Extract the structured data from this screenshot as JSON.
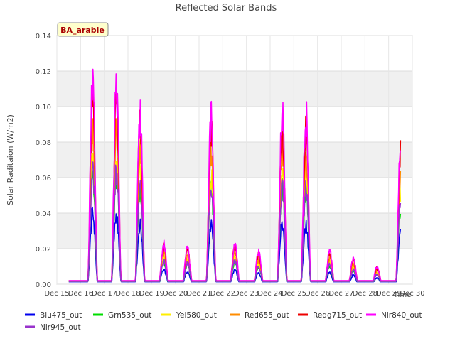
{
  "chart_data": {
    "type": "line",
    "title": "Reflected Solar Bands",
    "xlabel": "Time",
    "ylabel": "Solar Raditaion (W/m2)",
    "ylim": [
      0,
      0.14
    ],
    "yticks": [
      0.0,
      0.02,
      0.04,
      0.06,
      0.08,
      0.1,
      0.12,
      0.14
    ],
    "ytick_labels": [
      "0.00",
      "0.02",
      "0.04",
      "0.06",
      "0.08",
      "0.10",
      "0.12",
      "0.14"
    ],
    "x_range_days": [
      "Dec 15",
      "Dec 30"
    ],
    "xtick_labels": [
      "Dec 15",
      "Dec 16",
      "Dec 17",
      "Dec 18",
      "Dec 19",
      "Dec 20",
      "Dec 21",
      "Dec 22",
      "Dec 23",
      "Dec 24",
      "Dec 25",
      "Dec 26",
      "Dec 27",
      "Dec 28",
      "Dec 29",
      "Dec 30"
    ],
    "site_label": "BA_arable",
    "grid": true,
    "legend_placement": "bottom",
    "day_peaks": [
      {
        "date": "Dec 16",
        "peak": 0.127
      },
      {
        "date": "Dec 17",
        "peak": 0.125
      },
      {
        "date": "Dec 18",
        "peak": 0.107
      },
      {
        "date": "Dec 19",
        "peak": 0.026
      },
      {
        "date": "Dec 20",
        "peak": 0.023
      },
      {
        "date": "Dec 21",
        "peak": 0.106
      },
      {
        "date": "Dec 22",
        "peak": 0.026
      },
      {
        "date": "Dec 23",
        "peak": 0.02
      },
      {
        "date": "Dec 24",
        "peak": 0.11
      },
      {
        "date": "Dec 25",
        "peak": 0.107
      },
      {
        "date": "Dec 26",
        "peak": 0.021
      },
      {
        "date": "Dec 27",
        "peak": 0.016
      },
      {
        "date": "Dec 28",
        "peak": 0.011
      },
      {
        "date": "Dec 29",
        "peak": 0.09
      }
    ],
    "baseline": 0.002,
    "series": [
      {
        "name": "Blu475_out",
        "color": "#0000ee",
        "ratio": 0.35
      },
      {
        "name": "Grn535_out",
        "color": "#00dd00",
        "ratio": 0.55
      },
      {
        "name": "Yel580_out",
        "color": "#ffee00",
        "ratio": 0.65
      },
      {
        "name": "Red655_out",
        "color": "#ff8c00",
        "ratio": 0.78
      },
      {
        "name": "Redg715_out",
        "color": "#ee0000",
        "ratio": 0.92
      },
      {
        "name": "Nir840_out",
        "color": "#ff00ff",
        "ratio": 1.0
      },
      {
        "name": "Nir945_out",
        "color": "#9933cc",
        "ratio": 0.57
      }
    ]
  }
}
